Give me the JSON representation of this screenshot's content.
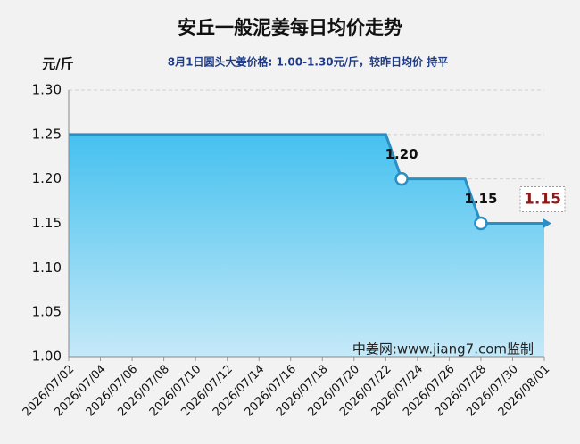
{
  "chart_data": {
    "type": "line",
    "title": "安丘一般泥姜每日均价走势",
    "subtitle": "8月1日圆头大姜价格: 1.00-1.30元/斤，较昨日均价 持平",
    "y_label": "元/斤",
    "watermark": "中姜网:www.jiang7.com监制",
    "x": [
      "2026/07/02",
      null,
      "2026/07/04",
      null,
      "2026/07/06",
      null,
      "2026/07/08",
      null,
      "2026/07/10",
      null,
      "2026/07/12",
      null,
      "2026/07/14",
      null,
      "2026/07/16",
      null,
      "2026/07/18",
      null,
      "2026/07/20",
      null,
      "2026/07/22",
      null,
      "2026/07/24",
      null,
      "2026/07/26",
      null,
      "2026/07/28",
      null,
      "2026/07/30",
      null,
      "2026/08/01"
    ],
    "series": [
      {
        "color": "#2a8fc4",
        "values": [
          1.25,
          1.25,
          1.25,
          1.25,
          1.25,
          1.25,
          1.25,
          1.25,
          1.25,
          1.25,
          1.25,
          1.25,
          1.25,
          1.25,
          1.25,
          1.25,
          1.25,
          1.25,
          1.25,
          1.25,
          1.25,
          1.2,
          1.2,
          1.2,
          1.2,
          1.2,
          1.15,
          1.15,
          1.15,
          1.15,
          1.15
        ],
        "value_labels": [
          null,
          null,
          null,
          null,
          null,
          null,
          null,
          null,
          null,
          null,
          null,
          null,
          null,
          null,
          null,
          null,
          null,
          null,
          null,
          null,
          null,
          "1.20",
          null,
          null,
          null,
          null,
          "1.15",
          null,
          null,
          null,
          null
        ]
      }
    ],
    "last_value_label": "1.15",
    "ylim": [
      1.0,
      1.3
    ],
    "yticks": [
      {
        "value": 1.0,
        "label": "1.00"
      },
      {
        "value": 1.05,
        "label": "1.05"
      },
      {
        "value": 1.1,
        "label": "1.10"
      },
      {
        "value": 1.15,
        "label": "1.15"
      },
      {
        "value": 1.2,
        "label": "1.20"
      },
      {
        "value": 1.25,
        "label": "1.25"
      },
      {
        "value": 1.3,
        "label": "1.30"
      }
    ],
    "grid": true
  }
}
